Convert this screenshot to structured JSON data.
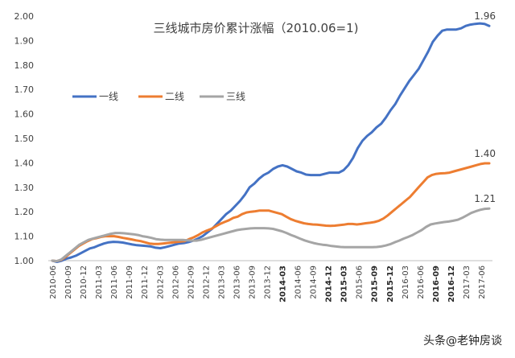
{
  "chart_data": {
    "type": "line",
    "title": "三线城市房价累计涨幅（2010.06=1)",
    "xlabel": "",
    "ylabel": "",
    "ylim": [
      1.0,
      2.0
    ],
    "y_ticks": [
      "1.00",
      "1.10",
      "1.20",
      "1.30",
      "1.40",
      "1.50",
      "1.60",
      "1.70",
      "1.80",
      "1.90",
      "2.00"
    ],
    "grid": false,
    "legend_position": "upper-left",
    "x_tick_labels": [
      "2010-06",
      "2010-09",
      "2010-12",
      "2011-03",
      "2011-06",
      "2011-09",
      "2011-12",
      "2012-03",
      "2012-06",
      "2012-09",
      "2012-12",
      "2013-03",
      "2013-06",
      "2013-09",
      "2013-12",
      "2014-03",
      "2014-06",
      "2014-09",
      "2014-12",
      "2015-03",
      "2015-06",
      "2015-09",
      "2015-12",
      "2016-03",
      "2016-06",
      "2016-09",
      "2016-12",
      "2017-03",
      "2017-06"
    ],
    "bold_ticks": [
      "2014-03",
      "2014-12",
      "2015-03",
      "2015-09",
      "2015-12",
      "2016-09",
      "2016-12"
    ],
    "end_labels": [
      "1.96",
      "1.40",
      "1.21"
    ],
    "series": [
      {
        "name": "一线",
        "color": "#4472C4",
        "values": [
          1.0,
          0.995,
          1.0,
          1.008,
          1.013,
          1.02,
          1.03,
          1.04,
          1.05,
          1.055,
          1.063,
          1.07,
          1.075,
          1.077,
          1.076,
          1.074,
          1.07,
          1.066,
          1.063,
          1.062,
          1.06,
          1.058,
          1.053,
          1.051,
          1.055,
          1.06,
          1.065,
          1.07,
          1.072,
          1.076,
          1.082,
          1.09,
          1.1,
          1.115,
          1.13,
          1.15,
          1.17,
          1.19,
          1.205,
          1.225,
          1.245,
          1.27,
          1.3,
          1.315,
          1.335,
          1.35,
          1.36,
          1.375,
          1.385,
          1.39,
          1.385,
          1.375,
          1.365,
          1.36,
          1.352,
          1.35,
          1.35,
          1.35,
          1.355,
          1.36,
          1.36,
          1.36,
          1.37,
          1.39,
          1.42,
          1.46,
          1.49,
          1.51,
          1.525,
          1.545,
          1.56,
          1.585,
          1.615,
          1.64,
          1.675,
          1.705,
          1.735,
          1.76,
          1.785,
          1.82,
          1.855,
          1.895,
          1.92,
          1.94,
          1.945,
          1.945,
          1.945,
          1.95,
          1.96,
          1.965,
          1.968,
          1.97,
          1.968,
          1.96
        ]
      },
      {
        "name": "二线",
        "color": "#ED7D31",
        "values": [
          1.0,
          0.998,
          1.003,
          1.015,
          1.03,
          1.045,
          1.06,
          1.07,
          1.08,
          1.088,
          1.092,
          1.097,
          1.1,
          1.1,
          1.1,
          1.097,
          1.093,
          1.09,
          1.087,
          1.083,
          1.08,
          1.075,
          1.07,
          1.068,
          1.068,
          1.07,
          1.072,
          1.074,
          1.076,
          1.078,
          1.08,
          1.088,
          1.095,
          1.104,
          1.115,
          1.123,
          1.13,
          1.14,
          1.15,
          1.158,
          1.165,
          1.175,
          1.18,
          1.19,
          1.197,
          1.2,
          1.202,
          1.205,
          1.205,
          1.205,
          1.2,
          1.195,
          1.19,
          1.18,
          1.17,
          1.163,
          1.158,
          1.153,
          1.15,
          1.148,
          1.147,
          1.145,
          1.143,
          1.142,
          1.143,
          1.145,
          1.147,
          1.15,
          1.15,
          1.148,
          1.15,
          1.153,
          1.155,
          1.158,
          1.163,
          1.172,
          1.185,
          1.2,
          1.215,
          1.23,
          1.245,
          1.26,
          1.28,
          1.3,
          1.32,
          1.34,
          1.35,
          1.355,
          1.357,
          1.358,
          1.36,
          1.365,
          1.37,
          1.375,
          1.38,
          1.385,
          1.39,
          1.395,
          1.398,
          1.398
        ]
      },
      {
        "name": "三线",
        "color": "#A5A5A5",
        "values": [
          1.0,
          0.998,
          1.005,
          1.02,
          1.035,
          1.05,
          1.065,
          1.075,
          1.085,
          1.09,
          1.095,
          1.1,
          1.105,
          1.11,
          1.113,
          1.113,
          1.112,
          1.11,
          1.108,
          1.105,
          1.1,
          1.097,
          1.093,
          1.088,
          1.086,
          1.085,
          1.085,
          1.085,
          1.085,
          1.085,
          1.083,
          1.082,
          1.082,
          1.085,
          1.09,
          1.095,
          1.1,
          1.105,
          1.11,
          1.115,
          1.12,
          1.125,
          1.128,
          1.13,
          1.132,
          1.133,
          1.133,
          1.133,
          1.132,
          1.13,
          1.125,
          1.12,
          1.113,
          1.105,
          1.098,
          1.09,
          1.083,
          1.077,
          1.072,
          1.068,
          1.065,
          1.063,
          1.06,
          1.058,
          1.056,
          1.055,
          1.055,
          1.055,
          1.055,
          1.055,
          1.055,
          1.055,
          1.056,
          1.058,
          1.062,
          1.067,
          1.075,
          1.082,
          1.09,
          1.097,
          1.105,
          1.115,
          1.125,
          1.138,
          1.148,
          1.152,
          1.155,
          1.158,
          1.16,
          1.163,
          1.167,
          1.175,
          1.185,
          1.195,
          1.202,
          1.208,
          1.212,
          1.213
        ]
      }
    ]
  },
  "watermark": "头条@老钟房谈"
}
